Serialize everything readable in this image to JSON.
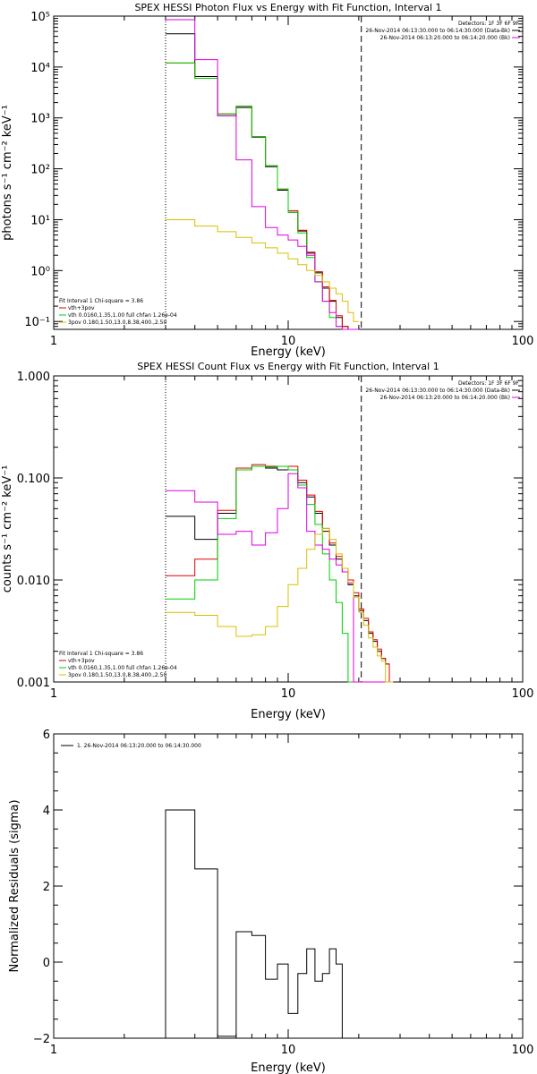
{
  "colors": {
    "black": "#000000",
    "red": "#e00000",
    "green": "#00d000",
    "magenta": "#e000e0",
    "yellow": "#d8c000"
  },
  "charts": [
    {
      "id": "photon",
      "chart_data": {
        "type": "line",
        "title": "SPEX HESSI Photon Flux vs Energy with Fit Function, Interval 1",
        "xlabel": "Energy (keV)",
        "ylabel": "photons s⁻¹ cm⁻² keV⁻¹",
        "xscale": "log",
        "yscale": "log",
        "xlim": [
          1,
          100
        ],
        "ylim": [
          0.07,
          100000
        ],
        "xticks": [
          {
            "v": 1,
            "label": "1"
          },
          {
            "v": 10,
            "label": "10"
          },
          {
            "v": 100,
            "label": "100"
          }
        ],
        "yticks": [
          {
            "v": 0.1,
            "label": "10⁻¹"
          },
          {
            "v": 1,
            "label": "10⁰"
          },
          {
            "v": 10,
            "label": "10¹"
          },
          {
            "v": 100,
            "label": "10²"
          },
          {
            "v": 1000,
            "label": "10³"
          },
          {
            "v": 10000,
            "label": "10⁴"
          },
          {
            "v": 100000,
            "label": "10⁵"
          }
        ],
        "vlines": [
          {
            "x": 3,
            "style": "dotted"
          },
          {
            "x": 20.5,
            "style": "dashed"
          }
        ],
        "edges": [
          3,
          4,
          5,
          6,
          7,
          8,
          9,
          10,
          11,
          12,
          13,
          14,
          15,
          16,
          17,
          18,
          19,
          20
        ],
        "series": [
          {
            "color": "black",
            "values": [
              45000,
              6500,
              1100,
              1600,
              420,
              110,
              38,
              14,
              6,
              2.2,
              0.9,
              0.45,
              0.25,
              0.12,
              0.08,
              0.07,
              0.07
            ]
          },
          {
            "color": "red",
            "values": [
              12000,
              6000,
              1200,
              1700,
              430,
              115,
              40,
              15,
              6.2,
              2.3,
              0.95,
              0.48,
              0.26,
              0.13,
              0.08,
              0.07,
              0.07
            ]
          },
          {
            "color": "green",
            "values": [
              12000,
              6000,
              1200,
              1700,
              430,
              115,
              40,
              14,
              5.5,
              1.8,
              0.6,
              0.25,
              0.12,
              0.08,
              0.07,
              0.07,
              0.07
            ]
          },
          {
            "color": "magenta",
            "values": [
              85000,
              14000,
              1100,
              150,
              18,
              7,
              5,
              4,
              3,
              2,
              0.6,
              0.25,
              0.15,
              0.08,
              0.07,
              0.07,
              0.07
            ]
          },
          {
            "color": "yellow",
            "values": [
              10,
              7.5,
              5.8,
              4.5,
              3.5,
              2.8,
              2.2,
              1.7,
              1.3,
              1.0,
              0.8,
              0.6,
              0.45,
              0.35,
              0.25,
              0.15,
              0.1
            ]
          }
        ],
        "legend_right": {
          "header": "Detectors: 1F 3F 6F 9F",
          "items": [
            {
              "text": "26-Nov-2014 06:13:30.000 to 06:14:30.000 (Data-Bk)",
              "color": "black"
            },
            {
              "text": "26-Nov-2014 06:13:20.000 to 06:14:20.000 (Bk)",
              "color": "magenta"
            }
          ]
        },
        "legend_left": [
          {
            "text": "Fit Interval 1    Chi-square = 3.86",
            "color": null
          },
          {
            "text": "vth+3pov",
            "color": "red"
          },
          {
            "text": "vth 0.0160,1.35,1.00  full chfan 1.26e-04",
            "color": "green"
          },
          {
            "text": "3pov 0.180,1.50,13.0,8.38,400.,2.50",
            "color": "yellow"
          }
        ]
      }
    },
    {
      "id": "count",
      "chart_data": {
        "type": "line",
        "title": "SPEX HESSI Count Flux vs Energy with Fit Function, Interval 1",
        "xlabel": "Energy (keV)",
        "ylabel": "counts s⁻¹ cm⁻² keV⁻¹",
        "xscale": "log",
        "yscale": "log",
        "xlim": [
          1,
          100
        ],
        "ylim": [
          0.001,
          1.0
        ],
        "xticks": [
          {
            "v": 1,
            "label": "1"
          },
          {
            "v": 10,
            "label": "10"
          },
          {
            "v": 100,
            "label": "100"
          }
        ],
        "yticks": [
          {
            "v": 0.001,
            "label": "0.001"
          },
          {
            "v": 0.01,
            "label": "0.010"
          },
          {
            "v": 0.1,
            "label": "0.100"
          },
          {
            "v": 1,
            "label": "1.000"
          }
        ],
        "vlines": [
          {
            "x": 3,
            "style": "dotted"
          },
          {
            "x": 20.5,
            "style": "dashed"
          }
        ],
        "edges": [
          3,
          4,
          5,
          6,
          7,
          8,
          9,
          10,
          11,
          12,
          13,
          14,
          15,
          16,
          17,
          18,
          19,
          20,
          21,
          22,
          23,
          24,
          25,
          26,
          27,
          28
        ],
        "series": [
          {
            "color": "black",
            "values": [
              0.042,
              0.025,
              0.045,
              0.12,
              0.13,
              0.125,
              0.12,
              0.12,
              0.09,
              0.065,
              0.045,
              0.03,
              0.022,
              0.016,
              0.012,
              0.009,
              0.007,
              0.005,
              0.004,
              0.003,
              0.0025,
              0.002,
              0.0017,
              0.0015,
              0.001
            ]
          },
          {
            "color": "red",
            "values": [
              0.011,
              0.016,
              0.048,
              0.125,
              0.135,
              0.13,
              0.13,
              0.13,
              0.095,
              0.068,
              0.047,
              0.032,
              0.023,
              0.017,
              0.013,
              0.01,
              0.0075,
              0.0052,
              0.0042,
              0.0031,
              0.0026,
              0.0021,
              0.0017,
              0.0015,
              0.001
            ]
          },
          {
            "color": "green",
            "values": [
              0.0065,
              0.01,
              0.04,
              0.12,
              0.13,
              0.128,
              0.13,
              0.12,
              0.085,
              0.055,
              0.035,
              0.018,
              0.01,
              0.006,
              0.003,
              0.001,
              0.001,
              0.001,
              0.001,
              0.001,
              0.001,
              0.001,
              0.001,
              0.001,
              0.001
            ]
          },
          {
            "color": "magenta",
            "values": [
              0.075,
              0.058,
              0.028,
              0.03,
              0.022,
              0.029,
              0.05,
              0.11,
              0.08,
              0.03,
              0.022,
              0.02,
              0.016,
              0.014,
              0.012,
              0.0092,
              0.001,
              0.001,
              0.001,
              0.001,
              0.001,
              0.001,
              0.001,
              0.001,
              0.001
            ]
          },
          {
            "color": "yellow",
            "values": [
              0.0048,
              0.0045,
              0.0035,
              0.0028,
              0.0029,
              0.0035,
              0.0055,
              0.009,
              0.013,
              0.02,
              0.028,
              0.032,
              0.025,
              0.018,
              0.013,
              0.0095,
              0.0068,
              0.0048,
              0.0036,
              0.0027,
              0.0022,
              0.0018,
              0.0016,
              0.001,
              0.001
            ]
          }
        ],
        "legend_right": {
          "header": "Detectors: 1F 3F 6F 9F",
          "items": [
            {
              "text": "26-Nov-2014 06:13:30.000 to 06:14:30.000 (Data-Bk)",
              "color": "black"
            },
            {
              "text": "26-Nov-2014 06:13:20.000 to 06:14:20.000 (Bk)",
              "color": "magenta"
            }
          ]
        },
        "legend_left": [
          {
            "text": "Fit Interval 1    Chi-square = 3.86",
            "color": null
          },
          {
            "text": "vth+3pov",
            "color": "red"
          },
          {
            "text": "vth 0.0160,1.35,1.00  full chfan 1.26e-04",
            "color": "green"
          },
          {
            "text": "3pov 0.180,1.50,13.0,8.38,400.,2.50",
            "color": "yellow"
          }
        ]
      }
    },
    {
      "id": "resid",
      "chart_data": {
        "type": "line",
        "title": "",
        "xlabel": "Energy (keV)",
        "ylabel": "Normalized Residuals (sigma)",
        "xscale": "log",
        "yscale": "linear",
        "xlim": [
          1,
          100
        ],
        "ylim": [
          -2,
          6
        ],
        "xticks": [
          {
            "v": 1,
            "label": "1"
          },
          {
            "v": 10,
            "label": "10"
          },
          {
            "v": 100,
            "label": "100"
          }
        ],
        "yticks": [
          {
            "v": -2,
            "label": "−2"
          },
          {
            "v": 0,
            "label": "0"
          },
          {
            "v": 2,
            "label": "2"
          },
          {
            "v": 4,
            "label": "4"
          },
          {
            "v": 6,
            "label": "6"
          }
        ],
        "vlines": [],
        "edges": [
          3,
          4,
          5,
          6,
          7,
          8,
          9,
          10,
          11,
          12,
          13,
          14,
          15,
          16,
          17,
          18,
          19,
          20
        ],
        "series": [
          {
            "color": "black",
            "values": [
              4.0,
              2.45,
              -1.95,
              0.8,
              0.7,
              -0.45,
              -0.05,
              -1.35,
              -0.3,
              0.35,
              -0.5,
              -0.3,
              0.35,
              -0.05,
              -2.0,
              -2.0,
              -2.0
            ],
            "close_to_floor": true
          }
        ],
        "legend_right": null,
        "legend_left": null,
        "legend_top": {
          "text": "1. 26-Nov-2014 06:13:20.000 to 06:14:30.000",
          "color": "black"
        }
      }
    }
  ]
}
